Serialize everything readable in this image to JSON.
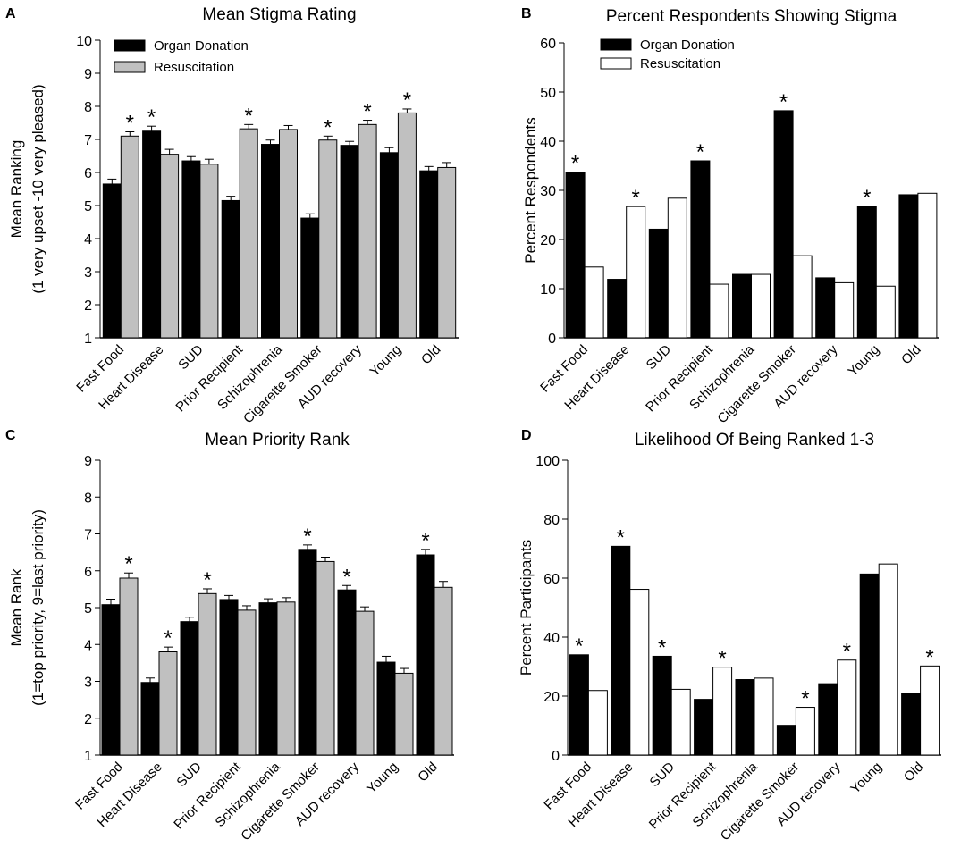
{
  "chart_data": [
    {
      "panel": "A",
      "type": "bar",
      "title": "Mean Stigma Rating",
      "ylabel_line1": "Mean Ranking",
      "ylabel_line2": "(1 very upset -10 very pleased)",
      "xlabel": "",
      "ylim": [
        1,
        10
      ],
      "yticks": [
        1,
        2,
        3,
        4,
        5,
        6,
        7,
        8,
        9,
        10
      ],
      "legend": "top-left",
      "categories": [
        "Fast Food",
        "Heart Disease",
        "SUD",
        "Prior Recipient",
        "Schizophrenia",
        "Cigarette Smoker",
        "AUD recovery",
        "Young",
        "Old"
      ],
      "series": [
        {
          "name": "Organ Donation",
          "fill": "#000000",
          "values": [
            5.65,
            7.25,
            6.35,
            5.15,
            6.85,
            4.62,
            6.82,
            6.6,
            6.05
          ],
          "errors": [
            0.15,
            0.15,
            0.13,
            0.13,
            0.13,
            0.13,
            0.12,
            0.15,
            0.13
          ]
        },
        {
          "name": "Resuscitation",
          "fill": "#c0c0c0",
          "values": [
            7.1,
            6.55,
            6.25,
            7.32,
            7.3,
            6.98,
            7.45,
            7.8,
            6.15
          ],
          "errors": [
            0.13,
            0.15,
            0.15,
            0.13,
            0.12,
            0.12,
            0.13,
            0.12,
            0.15
          ]
        }
      ],
      "stars": [
        {
          "category": "Fast Food",
          "series": "Resuscitation"
        },
        {
          "category": "Heart Disease",
          "series": "Organ Donation"
        },
        {
          "category": "Prior Recipient",
          "series": "Resuscitation"
        },
        {
          "category": "Cigarette Smoker",
          "series": "Resuscitation"
        },
        {
          "category": "AUD recovery",
          "series": "Resuscitation"
        },
        {
          "category": "Young",
          "series": "Resuscitation"
        }
      ],
      "star_label": "*"
    },
    {
      "panel": "B",
      "type": "bar",
      "title": "Percent Respondents Showing Stigma",
      "ylabel_line1": "Percent Respondents",
      "ylabel_line2": "",
      "xlabel": "",
      "ylim": [
        0,
        60
      ],
      "yticks": [
        0,
        10,
        20,
        30,
        40,
        50,
        60
      ],
      "legend": "top-left",
      "categories": [
        "Fast Food",
        "Heart Disease",
        "SUD",
        "Prior Recipient",
        "Schizophrenia",
        "Cigarette Smoker",
        "AUD recovery",
        "Young",
        "Old"
      ],
      "series": [
        {
          "name": "Organ Donation",
          "fill": "#000000",
          "values": [
            33.7,
            11.9,
            22.1,
            36.0,
            12.9,
            46.2,
            12.2,
            26.7,
            29.1
          ]
        },
        {
          "name": "Resuscitation",
          "fill": "#ffffff",
          "values": [
            14.4,
            26.7,
            28.4,
            10.9,
            12.9,
            16.7,
            11.2,
            10.5,
            29.4
          ]
        }
      ],
      "stars": [
        {
          "category": "Fast Food",
          "series": "Organ Donation"
        },
        {
          "category": "Heart Disease",
          "series": "Resuscitation"
        },
        {
          "category": "Prior Recipient",
          "series": "Organ Donation"
        },
        {
          "category": "Cigarette Smoker",
          "series": "Organ Donation"
        },
        {
          "category": "Young",
          "series": "Organ Donation"
        }
      ],
      "star_label": "*"
    },
    {
      "panel": "C",
      "type": "bar",
      "title": "Mean Priority Rank",
      "ylabel_line1": "Mean Rank",
      "ylabel_line2": "(1=top priority, 9=last priority)",
      "xlabel": "",
      "ylim": [
        1,
        9
      ],
      "yticks": [
        1,
        2,
        3,
        4,
        5,
        6,
        7,
        8,
        9
      ],
      "legend": "none",
      "categories": [
        "Fast Food",
        "Heart Disease",
        "SUD",
        "Prior Recipient",
        "Schizophrenia",
        "Cigarette Smoker",
        "AUD recovery",
        "Young",
        "Old"
      ],
      "series": [
        {
          "name": "Organ Donation",
          "fill": "#000000",
          "values": [
            5.08,
            2.97,
            4.62,
            5.22,
            5.13,
            6.58,
            5.48,
            3.52,
            6.43
          ],
          "errors": [
            0.15,
            0.12,
            0.12,
            0.11,
            0.11,
            0.12,
            0.12,
            0.16,
            0.15
          ]
        },
        {
          "name": "Resuscitation",
          "fill": "#c0c0c0",
          "values": [
            5.8,
            3.8,
            5.38,
            4.93,
            5.15,
            6.25,
            4.9,
            3.22,
            5.55
          ],
          "errors": [
            0.14,
            0.13,
            0.13,
            0.12,
            0.12,
            0.12,
            0.12,
            0.13,
            0.16
          ]
        }
      ],
      "stars": [
        {
          "category": "Fast Food",
          "series": "Resuscitation"
        },
        {
          "category": "Heart Disease",
          "series": "Resuscitation"
        },
        {
          "category": "SUD",
          "series": "Resuscitation"
        },
        {
          "category": "Cigarette Smoker",
          "series": "Organ Donation"
        },
        {
          "category": "AUD recovery",
          "series": "Organ Donation"
        },
        {
          "category": "Old",
          "series": "Organ Donation"
        }
      ],
      "star_label": "*"
    },
    {
      "panel": "D",
      "type": "bar",
      "title": "Likelihood Of Being Ranked 1-3",
      "ylabel_line1": "Percent Participants",
      "ylabel_line2": "",
      "xlabel": "",
      "ylim": [
        0,
        100
      ],
      "yticks": [
        0,
        20,
        40,
        60,
        80,
        100
      ],
      "legend": "none",
      "categories": [
        "Fast Food",
        "Heart Disease",
        "SUD",
        "Prior Recipient",
        "Schizophrenia",
        "Cigarette Smoker",
        "AUD recovery",
        "Young",
        "Old"
      ],
      "series": [
        {
          "name": "Organ Donation",
          "fill": "#000000",
          "values": [
            34.0,
            70.8,
            33.5,
            18.9,
            25.6,
            10.1,
            24.2,
            61.4,
            21.0
          ]
        },
        {
          "name": "Resuscitation",
          "fill": "#ffffff",
          "values": [
            21.9,
            56.2,
            22.3,
            29.8,
            26.1,
            16.2,
            32.2,
            64.8,
            30.2
          ]
        }
      ],
      "stars": [
        {
          "category": "Fast Food",
          "series": "Organ Donation"
        },
        {
          "category": "Heart Disease",
          "series": "Organ Donation"
        },
        {
          "category": "SUD",
          "series": "Organ Donation"
        },
        {
          "category": "Prior Recipient",
          "series": "Resuscitation"
        },
        {
          "category": "Cigarette Smoker",
          "series": "Resuscitation"
        },
        {
          "category": "AUD recovery",
          "series": "Resuscitation"
        },
        {
          "category": "Old",
          "series": "Resuscitation"
        }
      ],
      "star_label": "*"
    }
  ]
}
